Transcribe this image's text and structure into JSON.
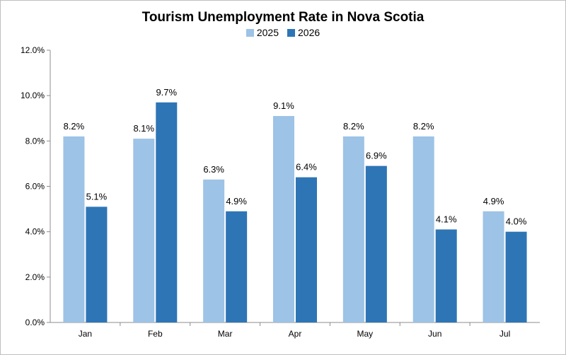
{
  "chart_data": {
    "type": "bar",
    "title": "Tourism Unemployment Rate in Nova Scotia",
    "categories": [
      "Jan",
      "Feb",
      "Mar",
      "Apr",
      "May",
      "Jun",
      "Jul"
    ],
    "series": [
      {
        "name": "2025",
        "color": "#9dc3e6",
        "values": [
          8.2,
          8.1,
          6.3,
          9.1,
          8.2,
          8.2,
          4.9
        ]
      },
      {
        "name": "2026",
        "color": "#2e75b6",
        "values": [
          5.1,
          9.7,
          4.9,
          6.4,
          6.9,
          4.1,
          4.0
        ]
      }
    ],
    "ylim": [
      0,
      12
    ],
    "yticks": [
      "0.0%",
      "2.0%",
      "4.0%",
      "6.0%",
      "8.0%",
      "10.0%",
      "12.0%"
    ],
    "data_labels": [
      [
        "8.2%",
        "8.1%",
        "6.3%",
        "9.1%",
        "8.2%",
        "8.2%",
        "4.9%"
      ],
      [
        "5.1%",
        "9.7%",
        "4.9%",
        "6.4%",
        "6.9%",
        "4.1%",
        "4.0%"
      ]
    ],
    "legend_position": "top",
    "grid": false
  }
}
